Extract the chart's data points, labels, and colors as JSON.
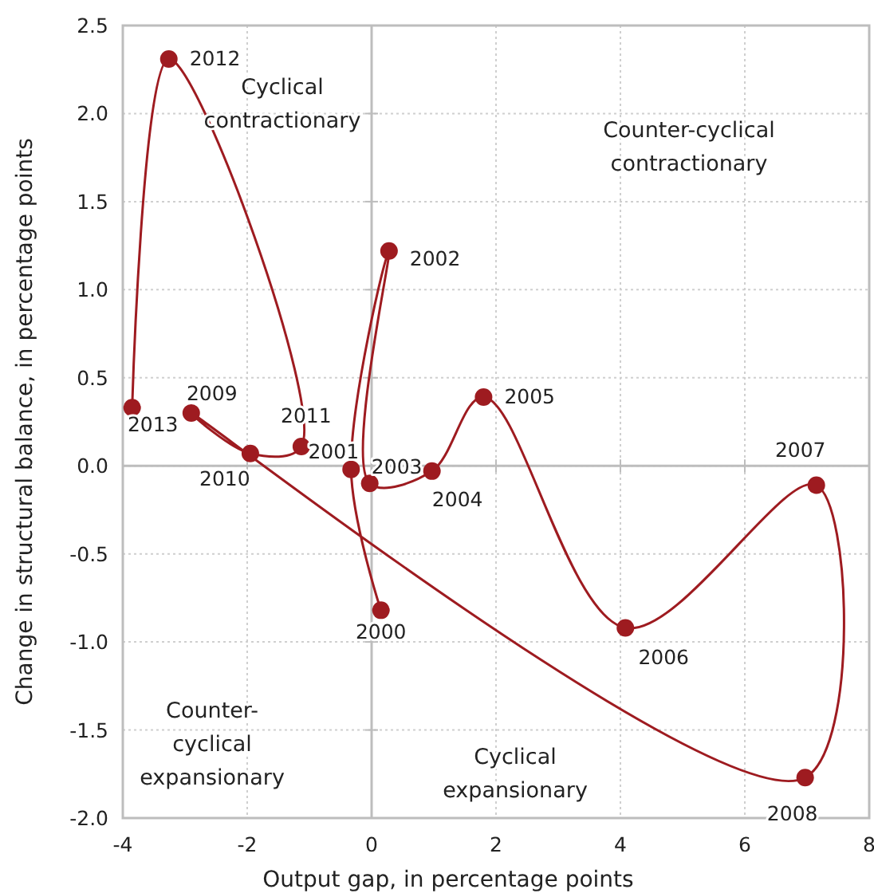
{
  "chart_data": {
    "type": "line",
    "xlabel": "Output gap, in percentage points",
    "ylabel": "Change in structural balance, in percentage points",
    "xlim": [
      -4,
      8
    ],
    "xticks": [
      -4,
      -2,
      0,
      2,
      4,
      6,
      8
    ],
    "ylim": [
      -2,
      2.5
    ],
    "yticks": [
      {
        "value": 2.5,
        "label": "2.5"
      },
      {
        "value": 2,
        "label": "2.0"
      },
      {
        "value": 1.5,
        "label": "1.5"
      },
      {
        "value": 1,
        "label": "1.0"
      },
      {
        "value": 0.5,
        "label": "0.5"
      },
      {
        "value": 0,
        "label": "0.0"
      },
      {
        "value": -0.5,
        "label": "-0.5"
      },
      {
        "value": -1,
        "label": "-1.0"
      },
      {
        "value": -1.5,
        "label": "-1.5"
      },
      {
        "value": -2,
        "label": "-2.0"
      }
    ],
    "grid": true,
    "marker": "circle",
    "line_style": "solid",
    "series": [
      {
        "color": "#9e1b20",
        "x": [
          0.15,
          -0.33,
          0.28,
          -0.03,
          0.97,
          1.8,
          4.08,
          7.15,
          6.97,
          -2.9,
          -1.95,
          -1.13,
          -3.26,
          -3.85
        ],
        "values": [
          -0.82,
          -0.02,
          1.22,
          -0.1,
          -0.03,
          0.39,
          -0.92,
          -0.11,
          -1.77,
          0.3,
          0.07,
          0.11,
          2.31,
          0.33
        ]
      }
    ],
    "annotations": [
      {
        "text": "2000",
        "x": 0.15,
        "y": -0.82
      },
      {
        "text": "2001",
        "x": -0.33,
        "y": -0.02
      },
      {
        "text": "2002",
        "x": 0.28,
        "y": 1.22
      },
      {
        "text": "2003",
        "x": -0.03,
        "y": -0.1
      },
      {
        "text": "2004",
        "x": 0.97,
        "y": -0.03
      },
      {
        "text": "2005",
        "x": 1.8,
        "y": 0.39
      },
      {
        "text": "2006",
        "x": 4.08,
        "y": -0.92
      },
      {
        "text": "2007",
        "x": 7.15,
        "y": -0.11
      },
      {
        "text": "2008",
        "x": 6.97,
        "y": -1.77
      },
      {
        "text": "2009",
        "x": -2.9,
        "y": 0.3
      },
      {
        "text": "2010",
        "x": -1.95,
        "y": 0.07
      },
      {
        "text": "2011",
        "x": -1.13,
        "y": 0.11
      },
      {
        "text": "2012",
        "x": -3.26,
        "y": 2.31
      },
      {
        "text": "2013",
        "x": -3.85,
        "y": 0.33
      },
      "Cyclical\ncontractionary",
      "Counter-cyclical\ncontractionary",
      "Counter-\ncyclical\nexpansionary",
      "Cyclical\nexpansionary"
    ]
  }
}
